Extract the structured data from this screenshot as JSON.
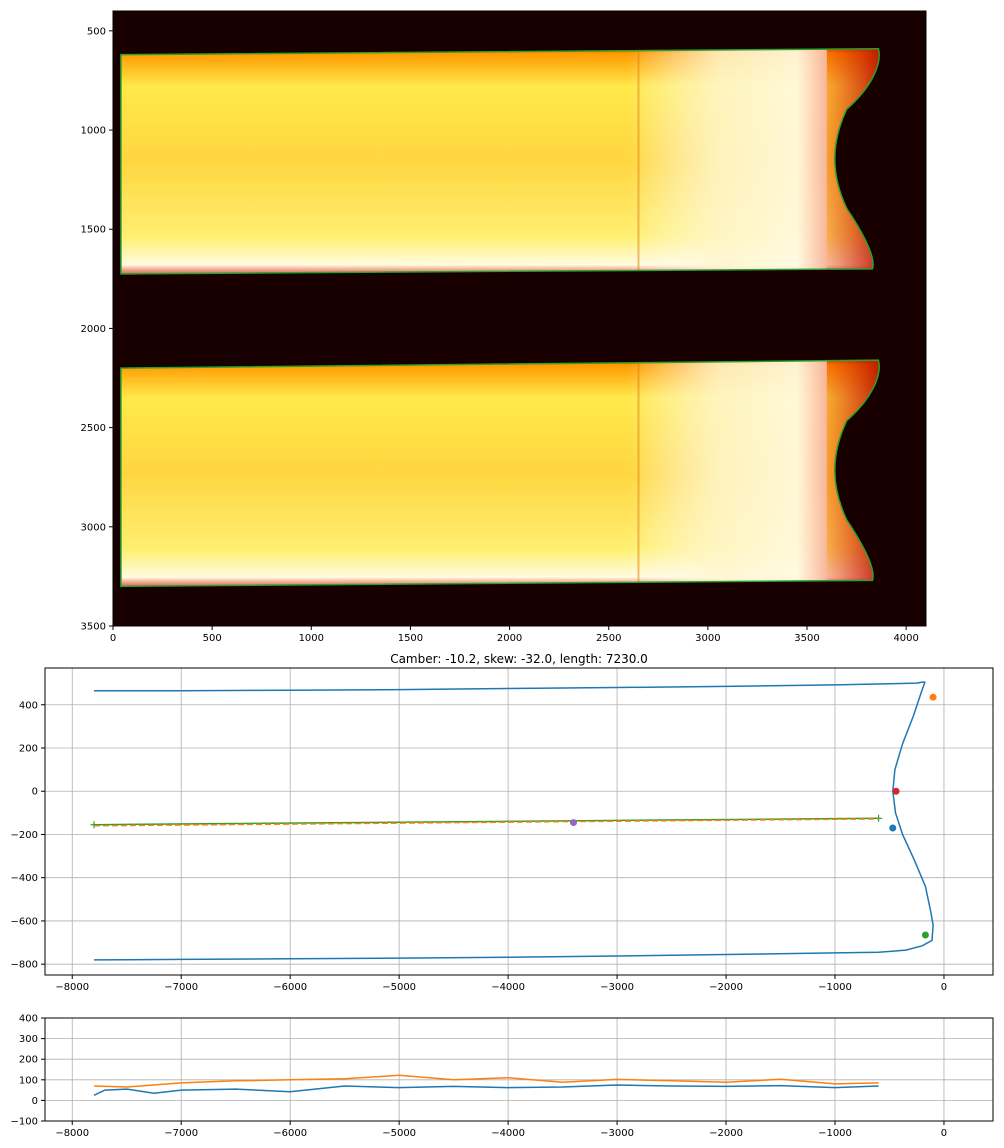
{
  "chart_data": [
    {
      "type": "heatmap",
      "title": "",
      "xlabel": "",
      "ylabel": "",
      "xlim": [
        0,
        4100
      ],
      "ylim": [
        3500,
        400
      ],
      "x_ticks": [
        "0",
        "500",
        "1000",
        "1500",
        "2000",
        "2500",
        "3000",
        "3500",
        "4000"
      ],
      "y_ticks": [
        "500",
        "1000",
        "1500",
        "2000",
        "2500",
        "3000",
        "3500"
      ],
      "colormap": "hot",
      "grid": false,
      "slabs": [
        {
          "outline_color": "#2ca02c",
          "top_left": [
            40,
            620
          ],
          "top_right": [
            3860,
            590
          ],
          "bottom_left": [
            40,
            1725
          ],
          "bottom_right": [
            3830,
            1700
          ],
          "head_indent_x": 3660
        },
        {
          "outline_color": "#2ca02c",
          "top_left": [
            40,
            2200
          ],
          "top_right": [
            3860,
            2160
          ],
          "bottom_left": [
            40,
            3300
          ],
          "bottom_right": [
            3830,
            3270
          ],
          "head_indent_x": 3660
        }
      ]
    },
    {
      "type": "line",
      "title": "Camber: -10.2, skew: -32.0, length: 7230.0",
      "xlabel": "",
      "ylabel": "",
      "xlim": [
        -8250,
        450
      ],
      "ylim": [
        -850,
        570
      ],
      "x_ticks": [
        -8000,
        -7000,
        -6000,
        -5000,
        -4000,
        -3000,
        -2000,
        -1000,
        0
      ],
      "y_ticks": [
        -800,
        -600,
        -400,
        -200,
        0,
        200,
        400
      ],
      "grid": true,
      "series": [
        {
          "color": "#1f77b4",
          "x": [
            -7800,
            -7000,
            -6000,
            -5000,
            -4000,
            -3000,
            -2000,
            -1000,
            -500,
            -350,
            -250,
            -200,
            -175,
            -200,
            -280,
            -380,
            -450,
            -470,
            -445,
            -380,
            -270,
            -170,
            -120,
            -100,
            -110,
            -200,
            -350,
            -600,
            -1000,
            -2000,
            -3000,
            -4000,
            -5000,
            -6000,
            -7000,
            -7800
          ],
          "y": [
            465,
            465,
            467,
            470,
            475,
            480,
            485,
            492,
            497,
            499,
            500,
            505,
            505,
            470,
            350,
            220,
            100,
            0,
            -100,
            -200,
            -320,
            -440,
            -560,
            -620,
            -690,
            -715,
            -735,
            -745,
            -748,
            -755,
            -762,
            -768,
            -772,
            -775,
            -778,
            -780
          ]
        },
        {
          "color": "#2ca02c",
          "x": [
            -7800,
            -600
          ],
          "y": [
            -155,
            -125
          ]
        },
        {
          "color": "#ff7f0e",
          "x": [
            -7800,
            -600
          ],
          "y": [
            -160,
            -128
          ]
        }
      ],
      "points": [
        {
          "color": "#ff7f0e",
          "x": -100,
          "y": 435
        },
        {
          "color": "#d62728",
          "x": -440,
          "y": 0
        },
        {
          "color": "#1f77b4",
          "x": -470,
          "y": -170
        },
        {
          "color": "#2ca02c",
          "x": -170,
          "y": -665
        },
        {
          "color": "#9467bd",
          "x": -3400,
          "y": -145
        }
      ]
    },
    {
      "type": "line",
      "title": "",
      "xlabel": "",
      "ylabel": "",
      "xlim": [
        -8250,
        450
      ],
      "ylim": [
        -100,
        400
      ],
      "x_ticks": [
        -8000,
        -7000,
        -6000,
        -5000,
        -4000,
        -3000,
        -2000,
        -1000,
        0
      ],
      "y_ticks": [
        -100,
        0,
        100,
        200,
        300,
        400
      ],
      "grid": true,
      "series": [
        {
          "color": "#1f77b4",
          "x": [
            -7800,
            -7700,
            -7500,
            -7250,
            -7000,
            -6500,
            -6000,
            -5500,
            -5000,
            -4500,
            -4000,
            -3500,
            -3000,
            -2500,
            -2000,
            -1500,
            -1000,
            -600
          ],
          "y": [
            25,
            50,
            55,
            35,
            50,
            55,
            42,
            70,
            62,
            68,
            62,
            65,
            75,
            70,
            68,
            72,
            62,
            70
          ]
        },
        {
          "color": "#ff7f0e",
          "x": [
            -7800,
            -7500,
            -7000,
            -6500,
            -6000,
            -5500,
            -5000,
            -4500,
            -4000,
            -3500,
            -3000,
            -2500,
            -2000,
            -1500,
            -1000,
            -600
          ],
          "y": [
            70,
            65,
            85,
            95,
            100,
            105,
            122,
            100,
            110,
            88,
            102,
            95,
            88,
            103,
            80,
            85
          ]
        }
      ]
    }
  ]
}
